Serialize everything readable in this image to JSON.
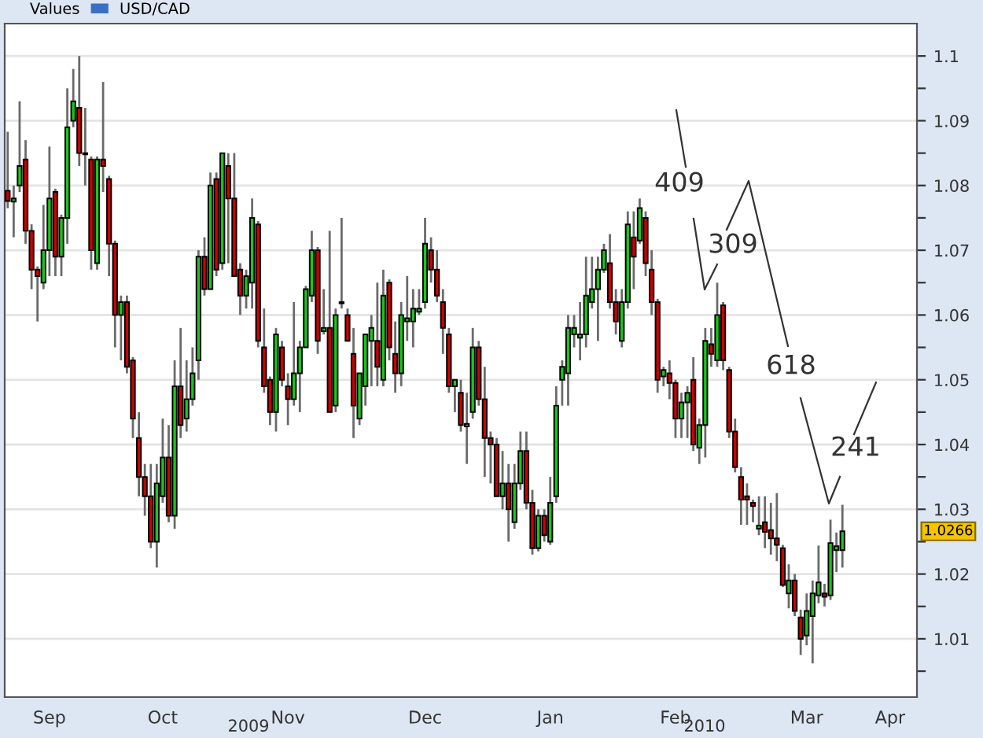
{
  "chart_data": {
    "type": "candlestick",
    "legend_title": "Values",
    "legend": "top left",
    "grid": "y",
    "ylim": [
      1.001,
      1.105
    ],
    "yticks": [
      {
        "value": 1.005,
        "label": null
      },
      1.01,
      {
        "value": 1.015,
        "label": null
      },
      1.02,
      {
        "value": 1.025,
        "label": null
      },
      1.03,
      {
        "value": 1.035,
        "label": null
      },
      1.04,
      {
        "value": 1.045,
        "label": null
      },
      1.05,
      {
        "value": 1.055,
        "label": null
      },
      1.06,
      {
        "value": 1.065,
        "label": null
      },
      1.07,
      {
        "value": 1.075,
        "label": null
      },
      1.08,
      {
        "value": 1.085,
        "label": null
      },
      1.09,
      {
        "value": 1.095,
        "label": null
      },
      1.1
    ],
    "annotations": [
      "409",
      "309",
      "618",
      "241",
      "2009",
      "2010",
      {
        "text": "1.0266",
        "y": 1.0266
      }
    ],
    "categories": [
      null,
      null,
      null,
      null,
      null,
      null,
      null,
      "Sep",
      null,
      null,
      null,
      null,
      null,
      null,
      null,
      null,
      null,
      null,
      null,
      null,
      null,
      null,
      null,
      null,
      null,
      null,
      "Oct",
      null,
      null,
      null,
      null,
      null,
      null,
      null,
      null,
      null,
      null,
      null,
      null,
      null,
      null,
      null,
      null,
      null,
      null,
      null,
      null,
      "Nov",
      null,
      null,
      null,
      null,
      null,
      null,
      null,
      null,
      null,
      null,
      null,
      null,
      null,
      null,
      null,
      null,
      null,
      null,
      null,
      null,
      null,
      null,
      "Dec",
      null,
      null,
      null,
      null,
      null,
      null,
      null,
      null,
      null,
      null,
      null,
      null,
      null,
      null,
      null,
      null,
      null,
      null,
      null,
      null,
      "Jan",
      null,
      null,
      null,
      null,
      null,
      null,
      null,
      null,
      null,
      null,
      null,
      null,
      null,
      null,
      null,
      null,
      null,
      null,
      null,
      null,
      "Feb",
      null,
      null,
      null,
      null,
      null,
      null,
      null,
      null,
      null,
      null,
      null,
      null,
      null,
      null,
      null,
      null,
      null,
      null,
      null,
      null,
      null,
      "Mar",
      null,
      null,
      null,
      null,
      null,
      null,
      null,
      null,
      null,
      null,
      null,
      null,
      null,
      "Apr",
      null,
      null,
      null,
      null
    ],
    "series": [
      {
        "name": "USD/CAD",
        "ohlc": [
          [
            1.0792,
            1.0883,
            1.0765,
            1.0776
          ],
          [
            1.0775,
            1.08,
            1.072,
            1.078
          ],
          [
            1.08,
            1.093,
            1.079,
            1.083
          ],
          [
            1.084,
            1.087,
            1.071,
            1.073
          ],
          [
            1.073,
            1.074,
            1.064,
            1.067
          ],
          [
            1.067,
            1.0675,
            1.059,
            1.066
          ],
          [
            1.065,
            1.077,
            1.064,
            1.07
          ],
          [
            1.07,
            1.086,
            1.066,
            1.078
          ],
          [
            1.079,
            1.0795,
            1.066,
            1.069
          ],
          [
            1.069,
            1.0755,
            1.066,
            1.075
          ],
          [
            1.075,
            1.095,
            1.071,
            1.089
          ],
          [
            1.09,
            1.098,
            1.089,
            1.093
          ],
          [
            1.092,
            1.1,
            1.083,
            1.085
          ],
          [
            1.085,
            1.092,
            1.08,
            1.0848
          ],
          [
            1.084,
            1.0845,
            1.067,
            1.07
          ],
          [
            1.068,
            1.0845,
            1.067,
            1.084
          ],
          [
            1.084,
            1.096,
            1.079,
            1.083
          ],
          [
            1.081,
            1.0815,
            1.066,
            1.071
          ],
          [
            1.071,
            1.0715,
            1.055,
            1.06
          ],
          [
            1.06,
            1.063,
            1.053,
            1.062
          ],
          [
            1.062,
            1.063,
            1.051,
            1.052
          ],
          [
            1.053,
            1.0535,
            1.041,
            1.044
          ],
          [
            1.041,
            1.045,
            1.032,
            1.035
          ],
          [
            1.035,
            1.037,
            1.029,
            1.032
          ],
          [
            1.032,
            1.037,
            1.024,
            1.025
          ],
          [
            1.025,
            1.037,
            1.021,
            1.034
          ],
          [
            1.032,
            1.044,
            1.031,
            1.038
          ],
          [
            1.038,
            1.043,
            1.028,
            1.029
          ],
          [
            1.029,
            1.053,
            1.027,
            1.049
          ],
          [
            1.049,
            1.058,
            1.041,
            1.043
          ],
          [
            1.044,
            1.053,
            1.042,
            1.047
          ],
          [
            1.047,
            1.055,
            1.046,
            1.051
          ],
          [
            1.053,
            1.07,
            1.05,
            1.069
          ],
          [
            1.069,
            1.072,
            1.063,
            1.064
          ],
          [
            1.064,
            1.082,
            1.064,
            1.08
          ],
          [
            1.081,
            1.082,
            1.066,
            1.067
          ],
          [
            1.068,
            1.085,
            1.067,
            1.085
          ],
          [
            1.083,
            1.085,
            1.068,
            1.078
          ],
          [
            1.078,
            1.085,
            1.066,
            1.066
          ],
          [
            1.067,
            1.068,
            1.06,
            1.063
          ],
          [
            1.063,
            1.067,
            1.061,
            1.066
          ],
          [
            1.065,
            1.078,
            1.061,
            1.075
          ],
          [
            1.074,
            1.0745,
            1.055,
            1.056
          ],
          [
            1.055,
            1.061,
            1.048,
            1.049
          ],
          [
            1.05,
            1.0505,
            1.043,
            1.045
          ],
          [
            1.045,
            1.058,
            1.042,
            1.057
          ],
          [
            1.055,
            1.056,
            1.049,
            1.05
          ],
          [
            1.049,
            1.051,
            1.043,
            1.047
          ],
          [
            1.047,
            1.062,
            1.046,
            1.051
          ],
          [
            1.051,
            1.056,
            1.045,
            1.055
          ],
          [
            1.055,
            1.0645,
            1.055,
            1.064
          ],
          [
            1.063,
            1.073,
            1.062,
            1.07
          ],
          [
            1.07,
            1.0705,
            1.054,
            1.056
          ],
          [
            1.0575,
            1.064,
            1.057,
            1.058
          ],
          [
            1.058,
            1.073,
            1.045,
            1.045
          ],
          [
            1.046,
            1.061,
            1.045,
            1.06
          ],
          [
            1.0618,
            1.075,
            1.061,
            1.062
          ],
          [
            1.06,
            1.061,
            1.056,
            1.056
          ],
          [
            1.054,
            1.058,
            1.041,
            1.046
          ],
          [
            1.044,
            1.051,
            1.043,
            1.051
          ],
          [
            1.049,
            1.057,
            1.046,
            1.057
          ],
          [
            1.056,
            1.06,
            1.049,
            1.058
          ],
          [
            1.056,
            1.065,
            1.049,
            1.052
          ],
          [
            1.05,
            1.067,
            1.049,
            1.063
          ],
          [
            1.065,
            1.0655,
            1.053,
            1.055
          ],
          [
            1.054,
            1.059,
            1.048,
            1.051
          ],
          [
            1.051,
            1.062,
            1.049,
            1.06
          ],
          [
            1.059,
            1.066,
            1.056,
            1.0595
          ],
          [
            1.059,
            1.064,
            1.055,
            1.061
          ],
          [
            1.0605,
            1.064,
            1.06,
            1.061
          ],
          [
            1.062,
            1.075,
            1.061,
            1.071
          ],
          [
            1.07,
            1.072,
            1.065,
            1.067
          ],
          [
            1.067,
            1.07,
            1.062,
            1.063
          ],
          [
            1.062,
            1.064,
            1.054,
            1.058
          ],
          [
            1.057,
            1.058,
            1.048,
            1.049
          ],
          [
            1.049,
            1.05,
            1.045,
            1.05
          ],
          [
            1.048,
            1.05,
            1.042,
            1.043
          ],
          [
            1.0428,
            1.048,
            1.037,
            1.0432
          ],
          [
            1.045,
            1.058,
            1.044,
            1.055
          ],
          [
            1.055,
            1.056,
            1.046,
            1.047
          ],
          [
            1.047,
            1.052,
            1.035,
            1.041
          ],
          [
            1.041,
            1.042,
            1.034,
            1.04
          ],
          [
            1.04,
            1.041,
            1.032,
            1.032
          ],
          [
            1.032,
            1.039,
            1.03,
            1.034
          ],
          [
            1.034,
            1.037,
            1.025,
            1.03
          ],
          [
            1.028,
            1.037,
            1.027,
            1.034
          ],
          [
            1.034,
            1.042,
            1.033,
            1.039
          ],
          [
            1.039,
            1.042,
            1.03,
            1.031
          ],
          [
            1.031,
            1.033,
            1.023,
            1.024
          ],
          [
            1.024,
            1.03,
            1.0235,
            1.029
          ],
          [
            1.029,
            1.03,
            1.025,
            1.026
          ],
          [
            1.025,
            1.035,
            1.0245,
            1.031
          ],
          [
            1.032,
            1.049,
            1.031,
            1.046
          ],
          [
            1.05,
            1.053,
            1.046,
            1.052
          ],
          [
            1.051,
            1.06,
            1.046,
            1.058
          ],
          [
            1.057,
            1.06,
            1.055,
            1.058
          ],
          [
            1.0565,
            1.062,
            1.053,
            1.057
          ],
          [
            1.057,
            1.069,
            1.055,
            1.063
          ],
          [
            1.062,
            1.069,
            1.061,
            1.064
          ],
          [
            1.064,
            1.069,
            1.056,
            1.067
          ],
          [
            1.067,
            1.071,
            1.0665,
            1.07
          ],
          [
            1.068,
            1.0725,
            1.061,
            1.062
          ],
          [
            1.062,
            1.064,
            1.057,
            1.059
          ],
          [
            1.056,
            1.064,
            1.055,
            1.062
          ],
          [
            1.062,
            1.076,
            1.061,
            1.074
          ],
          [
            1.072,
            1.076,
            1.064,
            1.069
          ],
          [
            1.0715,
            1.078,
            1.071,
            1.0765
          ],
          [
            1.075,
            1.076,
            1.066,
            1.068
          ],
          [
            1.067,
            1.07,
            1.06,
            1.062
          ],
          [
            1.062,
            1.0625,
            1.048,
            1.05
          ],
          [
            1.0505,
            1.052,
            1.049,
            1.0515
          ],
          [
            1.051,
            1.053,
            1.047,
            1.0495
          ],
          [
            1.0495,
            1.05,
            1.041,
            1.044
          ],
          [
            1.044,
            1.048,
            1.041,
            1.0465
          ],
          [
            1.0465,
            1.049,
            1.041,
            1.048
          ],
          [
            1.05,
            1.0535,
            1.039,
            1.04
          ],
          [
            1.0395,
            1.044,
            1.037,
            1.043
          ],
          [
            1.043,
            1.058,
            1.038,
            1.056
          ],
          [
            1.0555,
            1.058,
            1.052,
            1.054
          ],
          [
            1.053,
            1.065,
            1.052,
            1.06
          ],
          [
            1.0615,
            1.062,
            1.0515,
            1.053
          ],
          [
            1.0515,
            1.052,
            1.041,
            1.042
          ],
          [
            1.042,
            1.044,
            1.0357,
            1.0365
          ],
          [
            1.035,
            1.0365,
            1.0276,
            1.0315
          ],
          [
            1.032,
            1.034,
            1.0276,
            1.0315
          ],
          [
            1.031,
            1.0315,
            1.028,
            1.0305
          ],
          [
            1.027,
            1.032,
            1.026,
            1.0275
          ],
          [
            1.028,
            1.032,
            1.024,
            1.0265
          ],
          [
            1.0268,
            1.031,
            1.023,
            1.0255
          ],
          [
            1.0255,
            1.0325,
            1.022,
            1.0245
          ],
          [
            1.024,
            1.0245,
            1.018,
            1.0183
          ],
          [
            1.017,
            1.0215,
            1.0147,
            1.019
          ],
          [
            1.019,
            1.02,
            1.0135,
            1.0143
          ],
          [
            1.0133,
            1.0145,
            1.0075,
            1.01
          ],
          [
            1.0105,
            1.017,
            1.009,
            1.0143
          ],
          [
            1.0135,
            1.019,
            1.0062,
            1.017
          ],
          [
            1.0167,
            1.0244,
            1.0155,
            1.0187
          ],
          [
            1.017,
            1.0185,
            1.015,
            1.0165
          ],
          [
            1.0167,
            1.0284,
            1.016,
            1.0248
          ],
          [
            1.0237,
            1.0264,
            1.0203,
            1.0243
          ],
          [
            1.0237,
            1.0307,
            1.021,
            1.0266
          ],
          null,
          null,
          null,
          null,
          null,
          null,
          null,
          null,
          null,
          null,
          null,
          null
        ]
      }
    ]
  }
}
